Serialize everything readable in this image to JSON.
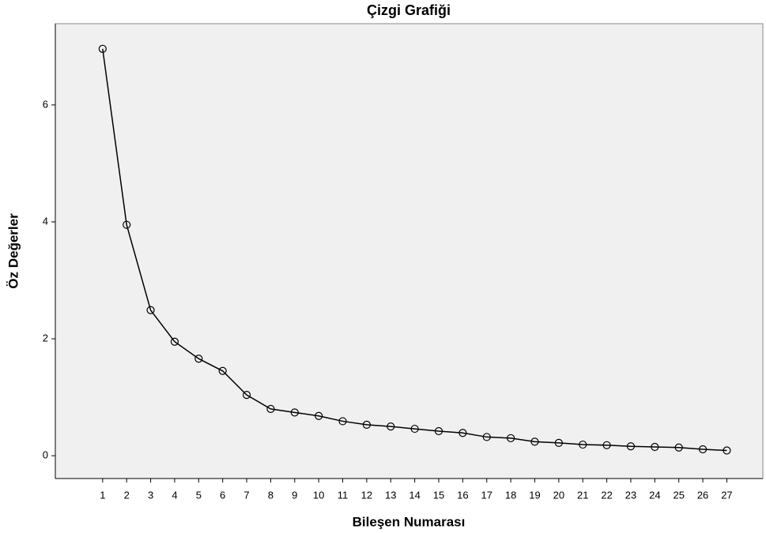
{
  "chart_data": {
    "type": "line",
    "title": "Çizgi Grafiği",
    "x_label": "Bileşen Numarası",
    "y_label": "Öz Değerler",
    "x": [
      1,
      2,
      3,
      4,
      5,
      6,
      7,
      8,
      9,
      10,
      11,
      12,
      13,
      14,
      15,
      16,
      17,
      18,
      19,
      20,
      21,
      22,
      23,
      24,
      25,
      26,
      27
    ],
    "series": [
      {
        "name": "Öz Değerler",
        "color": "#000000",
        "values": [
          6.96,
          3.95,
          2.49,
          1.95,
          1.66,
          1.45,
          1.04,
          0.8,
          0.74,
          0.68,
          0.59,
          0.53,
          0.5,
          0.46,
          0.42,
          0.39,
          0.32,
          0.3,
          0.24,
          0.22,
          0.19,
          0.18,
          0.16,
          0.15,
          0.14,
          0.11,
          0.09
        ]
      }
    ],
    "xlim": [
      -0.97,
      28.5
    ],
    "xticks": [
      1,
      2,
      3,
      4,
      5,
      6,
      7,
      8,
      9,
      10,
      11,
      12,
      13,
      14,
      15,
      16,
      17,
      18,
      19,
      20,
      21,
      22,
      23,
      24,
      25,
      26,
      27
    ],
    "ylim": [
      -0.39,
      7.39
    ],
    "yticks": [
      0,
      2,
      4,
      6
    ],
    "background": "#f0f0f0"
  }
}
